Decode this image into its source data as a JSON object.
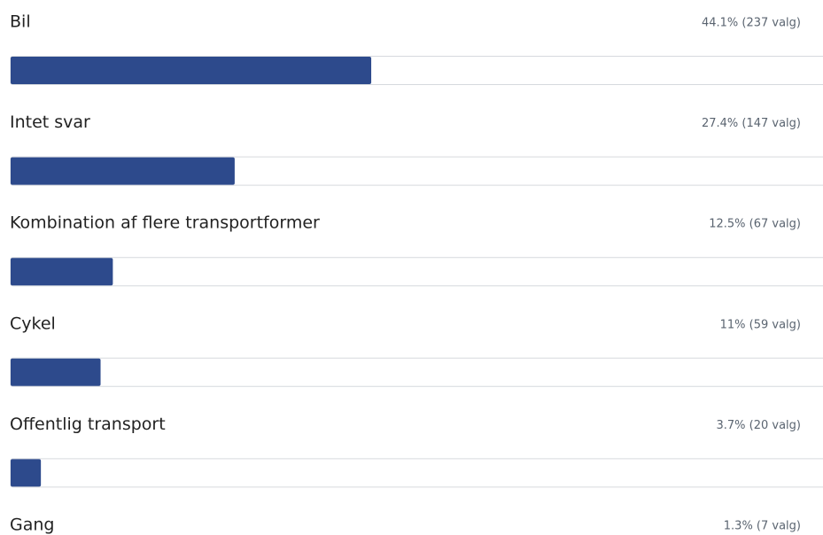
{
  "chart_data": {
    "type": "bar",
    "orientation": "horizontal",
    "color": "#2d4a8c",
    "categories": [
      "Bil",
      "Intet svar",
      "Kombination af flere transportformer",
      "Cykel",
      "Offentlig transport",
      "Gang"
    ],
    "values": [
      44.1,
      27.4,
      12.5,
      11,
      3.7,
      1.3
    ],
    "value_labels": [
      "44.1% (237 valg)",
      "27.4% (147 valg)",
      "12.5% (67 valg)",
      "11% (59 valg)",
      "3.7% (20 valg)",
      "1.3% (7 valg)"
    ]
  }
}
